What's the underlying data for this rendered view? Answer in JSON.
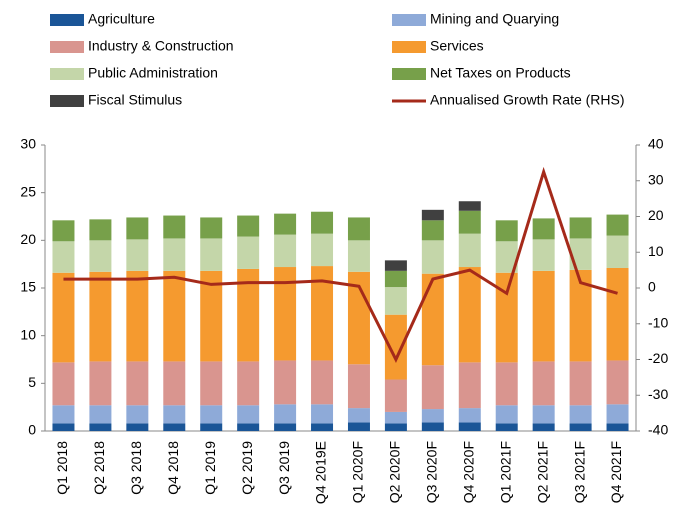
{
  "chart_data": {
    "type": "bar",
    "stacked": true,
    "categories": [
      "Q1 2018",
      "Q2 2018",
      "Q3 2018",
      "Q4 2018",
      "Q1 2019",
      "Q2 2019",
      "Q3 2019",
      "Q4 2019E",
      "Q1 2020F",
      "Q2 2020F",
      "Q3 2020F",
      "Q4 2020F",
      "Q1 2021F",
      "Q2 2021F",
      "Q3 2021F",
      "Q4 2021F"
    ],
    "series": [
      {
        "name": "Agriculture",
        "color": "#1a5597",
        "values": [
          0.8,
          0.8,
          0.8,
          0.8,
          0.8,
          0.8,
          0.8,
          0.8,
          0.9,
          0.8,
          0.9,
          0.9,
          0.8,
          0.8,
          0.8,
          0.8
        ]
      },
      {
        "name": "Mining and Quarying",
        "color": "#8eaad8",
        "values": [
          1.9,
          1.9,
          1.9,
          1.9,
          1.9,
          1.9,
          2.0,
          2.0,
          1.5,
          1.2,
          1.4,
          1.5,
          1.9,
          1.9,
          1.9,
          2.0
        ]
      },
      {
        "name": "Industry & Construction",
        "color": "#d9958f",
        "values": [
          4.5,
          4.6,
          4.6,
          4.6,
          4.6,
          4.6,
          4.6,
          4.6,
          4.6,
          3.4,
          4.6,
          4.8,
          4.5,
          4.6,
          4.6,
          4.6
        ]
      },
      {
        "name": "Services",
        "color": "#f59a2f",
        "values": [
          9.4,
          9.4,
          9.5,
          9.5,
          9.5,
          9.7,
          9.8,
          9.9,
          9.7,
          6.8,
          9.6,
          10.0,
          9.4,
          9.5,
          9.6,
          9.7
        ]
      },
      {
        "name": "Public Administration",
        "color": "#c4d6a9",
        "values": [
          3.3,
          3.3,
          3.3,
          3.4,
          3.4,
          3.4,
          3.4,
          3.4,
          3.3,
          2.9,
          3.5,
          3.5,
          3.3,
          3.3,
          3.3,
          3.4
        ]
      },
      {
        "name": "Net Taxes on Products",
        "color": "#77a04a",
        "values": [
          2.2,
          2.2,
          2.3,
          2.4,
          2.2,
          2.2,
          2.2,
          2.3,
          2.4,
          1.7,
          2.1,
          2.4,
          2.2,
          2.2,
          2.2,
          2.2
        ]
      },
      {
        "name": "Fiscal Stimulus",
        "color": "#404040",
        "values": [
          null,
          null,
          null,
          null,
          null,
          null,
          null,
          null,
          null,
          1.1,
          1.1,
          1.0,
          null,
          null,
          null,
          null
        ]
      },
      {
        "name": "Annualised Growth Rate (RHS)",
        "color": "#a52a1a",
        "type": "line",
        "axis": "y2",
        "values": [
          2.5,
          2.5,
          2.5,
          3,
          1,
          1.5,
          1.5,
          2,
          0.5,
          -20,
          2.5,
          5,
          -1.5,
          32.5,
          1.5,
          -1.5
        ]
      }
    ],
    "ylim": [
      0,
      30
    ],
    "yticks": [
      0,
      5,
      10,
      15,
      20,
      25,
      30
    ],
    "y2lim": [
      -40,
      40
    ],
    "y2ticks": [
      -40,
      -30,
      -20,
      -10,
      0,
      10,
      20,
      30,
      40
    ]
  }
}
